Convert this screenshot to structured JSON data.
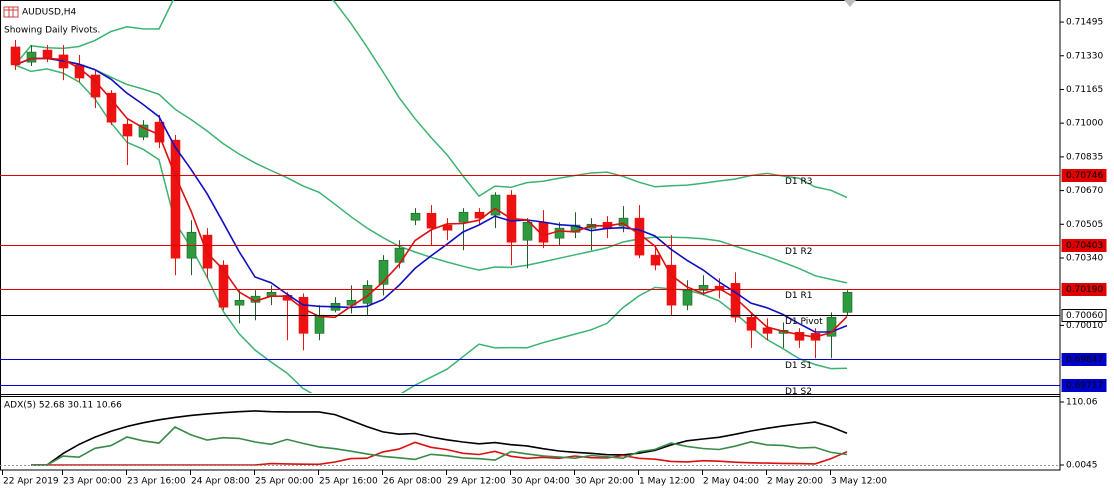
{
  "chart_data": {
    "type": "candlestick",
    "title": "AUDUSD,H4",
    "subtitle": "Showing Daily Pivots.",
    "categories": [
      "22 Apr 2019",
      null,
      null,
      "23 Apr 00:00",
      null,
      null,
      null,
      "23 Apr 16:00",
      null,
      null,
      null,
      "24 Apr 08:00",
      null,
      null,
      null,
      "25 Apr 00:00",
      null,
      null,
      null,
      "25 Apr 16:00",
      null,
      null,
      null,
      "26 Apr 08:00",
      null,
      null,
      null,
      "29 Apr 12:00",
      null,
      null,
      null,
      "30 Apr 04:00",
      null,
      null,
      null,
      "30 Apr 20:00",
      null,
      null,
      null,
      "1 May 12:00",
      null,
      null,
      null,
      "2 May 04:00",
      null,
      null,
      null,
      "2 May 20:00",
      null,
      null,
      null,
      "3 May 12:00",
      null
    ],
    "open": [
      0.71373,
      0.71299,
      0.71358,
      0.71334,
      0.71285,
      0.71236,
      0.71147,
      0.70995,
      0.70932,
      0.71005,
      0.70917,
      0.70339,
      0.70452,
      0.70305,
      0.70109,
      0.70123,
      0.70153,
      0.70157,
      0.70148,
      0.69971,
      0.70084,
      0.70109,
      0.70118,
      0.70211,
      0.70319,
      0.70525,
      0.70559,
      0.70501,
      0.70515,
      0.70564,
      0.7055,
      0.70648,
      0.70427,
      0.70515,
      0.70437,
      0.70466,
      0.70486,
      0.70515,
      0.70496,
      0.70535,
      0.70354,
      0.70305,
      0.70109,
      0.70182,
      0.70202,
      0.70216,
      0.7005,
      0.69998,
      0.69971,
      0.69976,
      0.69971,
      0.69957,
      0.70074
    ],
    "high": [
      0.71407,
      0.71383,
      0.71383,
      0.71383,
      0.71334,
      0.7126,
      0.71162,
      0.71025,
      0.71015,
      0.7104,
      0.70942,
      0.70525,
      0.70486,
      0.70329,
      0.70182,
      0.70182,
      0.70206,
      0.70172,
      0.70167,
      0.70109,
      0.70148,
      0.70206,
      0.70231,
      0.70354,
      0.70427,
      0.70584,
      0.70599,
      0.70535,
      0.70584,
      0.70584,
      0.70662,
      0.70672,
      0.70535,
      0.70574,
      0.70515,
      0.70564,
      0.70535,
      0.70545,
      0.70594,
      0.70599,
      0.70388,
      0.70452,
      0.70231,
      0.70256,
      0.70241,
      0.7027,
      0.70074,
      0.70045,
      0.70025,
      0.69996,
      0.69996,
      0.70074,
      0.70182
    ],
    "low": [
      0.7126,
      0.7128,
      0.71299,
      0.71211,
      0.71201,
      0.71074,
      0.70991,
      0.70795,
      0.70917,
      0.70878,
      0.70256,
      0.70256,
      0.70241,
      0.70084,
      0.7002,
      0.70035,
      0.70109,
      0.69937,
      0.69888,
      0.69937,
      0.70074,
      0.70069,
      0.7006,
      0.70157,
      0.7029,
      0.70501,
      0.70402,
      0.70427,
      0.70378,
      0.70501,
      0.70486,
      0.70305,
      0.7029,
      0.70388,
      0.70402,
      0.70437,
      0.70378,
      0.70437,
      0.70466,
      0.70339,
      0.7028,
      0.7006,
      0.70084,
      0.70157,
      0.70143,
      0.70025,
      0.699,
      0.69937,
      0.699,
      0.699,
      0.69849,
      0.69849,
      0.7006
    ],
    "close": [
      0.71285,
      0.71348,
      0.71319,
      0.7127,
      0.71221,
      0.71128,
      0.71005,
      0.70937,
      0.70991,
      0.70907,
      0.70339,
      0.70466,
      0.7029,
      0.70099,
      0.70133,
      0.70153,
      0.70172,
      0.70133,
      0.69971,
      0.7006,
      0.70118,
      0.70133,
      0.70206,
      0.70329,
      0.70388,
      0.70559,
      0.70486,
      0.70476,
      0.70564,
      0.70535,
      0.70648,
      0.70417,
      0.70515,
      0.70417,
      0.70486,
      0.70501,
      0.70505,
      0.70486,
      0.70535,
      0.70354,
      0.70305,
      0.70109,
      0.70182,
      0.70206,
      0.70182,
      0.7005,
      0.69986,
      0.69971,
      0.69986,
      0.69937,
      0.69937,
      0.7005,
      0.70172
    ],
    "up_color": "#2e9a3e",
    "down_color": "#ee1111",
    "ylim": [
      0.69679,
      0.71603
    ],
    "yticks": [
      0.71495,
      {
        "value": 0.7133,
        "label": "0.71330"
      },
      0.71165,
      {
        "value": 0.71,
        "label": "0.71000"
      },
      0.70835,
      {
        "value": 0.7067,
        "label": "0.70670"
      },
      0.70505,
      {
        "value": 0.7034,
        "label": "0.70340"
      },
      {
        "value": 0.7001,
        "label": "0.70010"
      }
    ],
    "pivots": [
      {
        "name": "D1 R3",
        "value": 0.70746,
        "color": "#e00000"
      },
      {
        "name": "D1 R2",
        "value": 0.70403,
        "color": "#e00000"
      },
      {
        "name": "D1 R1",
        "value": {
          "value": 0.7019,
          "label": "0.70190"
        },
        "color": "#e00000"
      },
      {
        "name": "D1 Pivot",
        "value": {
          "value": 0.7006,
          "label": "0.70060"
        },
        "color": "#000000"
      },
      {
        "name": "D1 S1",
        "value": 0.69847,
        "color": "#0000cc"
      },
      {
        "name": "D1 S2",
        "value": 0.69717,
        "color": "#0000cc"
      }
    ],
    "adx": {
      "title": "ADX(5) 52.68 30.11 10.66",
      "ylim": [
        0.0045,
        110.06
      ],
      "yticks": [
        110.06,
        0.0045
      ]
    }
  }
}
